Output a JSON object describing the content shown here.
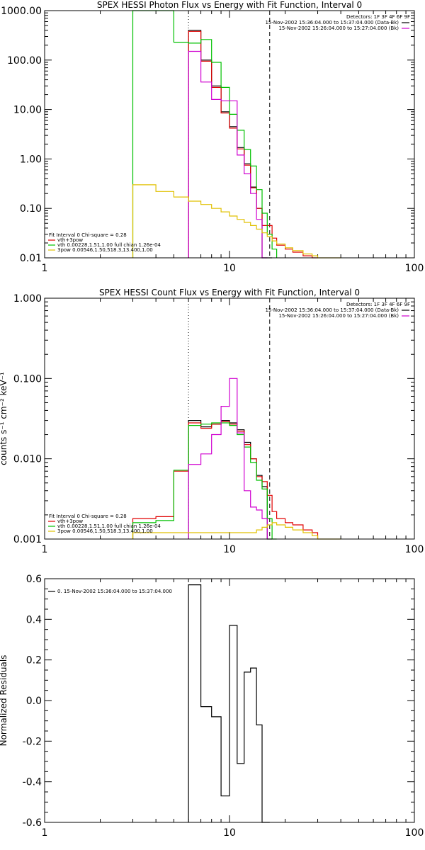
{
  "chart_data": [
    {
      "type": "line",
      "title": "SPEX HESSI Photon Flux vs Energy with Fit Function, Interval 0",
      "xscale": "log",
      "yscale": "log",
      "xlim": [
        1,
        100
      ],
      "ylim": [
        0.01,
        1000
      ],
      "xticks": [
        {
          "v": 1,
          "label": "1"
        },
        {
          "v": 10,
          "label": "10"
        },
        {
          "v": 100,
          "label": "100"
        }
      ],
      "yticks": [
        {
          "v": 0.01,
          "label": "0.01"
        },
        {
          "v": 0.1,
          "label": "0.10"
        },
        {
          "v": 1,
          "label": "1.00"
        },
        {
          "v": 10,
          "label": "10.00"
        },
        {
          "v": 100,
          "label": "100.00"
        },
        {
          "v": 1000,
          "label": "1000.00"
        }
      ],
      "vlines": [
        {
          "x": 6.0,
          "style": "dotted"
        },
        {
          "x": 16.5,
          "style": "dashed"
        }
      ],
      "header": [
        {
          "text": "Detectors: 1F 3F 4F 6F 9F",
          "color": null
        },
        {
          "text": "15-Nov-2002 15:36:04.000 to 15:37:04.000 (Data-Bk)",
          "color": "#000000"
        },
        {
          "text": "15-Nov-2002 15:26:04.000 to 15:27:04.000 (Bk)",
          "color": "#d000d0"
        }
      ],
      "legend": [
        {
          "text": "Fit Interval 0   Chi-square = 0.28",
          "color": null
        },
        {
          "text": "vth+3pow",
          "color": "#e00000"
        },
        {
          "text": "vth 0.00228,1.51,1.00  full chian 1.26e-04",
          "color": "#00c000"
        },
        {
          "text": "3pow 0.00546,1.50,518.3,13.400,1.00",
          "color": "#e0c000"
        }
      ],
      "series": [
        {
          "color": "#000000",
          "bins": [
            6,
            7,
            8,
            9,
            10,
            11,
            12,
            13,
            14,
            15,
            16,
            17
          ],
          "values": [
            400,
            100,
            30,
            9,
            4.5,
            1.7,
            0.8,
            0.27,
            0.1,
            0.01,
            0.01
          ]
        },
        {
          "color": "#e00000",
          "bins": [
            6,
            7,
            8,
            9,
            10,
            11,
            12,
            13,
            14,
            15,
            16,
            17,
            18,
            20,
            22,
            25,
            28,
            30
          ],
          "values": [
            380,
            95,
            28,
            8.5,
            4.2,
            1.6,
            0.75,
            0.26,
            0.1,
            0.045,
            0.045,
            0.025,
            0.018,
            0.015,
            0.013,
            0.011,
            0.01
          ]
        },
        {
          "color": "#00c000",
          "bins": [
            3,
            4,
            5,
            6,
            7,
            8,
            9,
            10,
            11,
            12,
            13,
            14,
            15,
            16,
            17,
            18
          ],
          "values": [
            1000,
            1000,
            230,
            220,
            260,
            90,
            28,
            8,
            3.8,
            1.55,
            0.72,
            0.24,
            0.08,
            0.03,
            0.015
          ]
        },
        {
          "color": "#d000d0",
          "bins": [
            6,
            7,
            8,
            9,
            10,
            11,
            12,
            13,
            14,
            15,
            16
          ],
          "values": [
            150,
            36,
            16,
            15,
            15,
            1.2,
            0.5,
            0.2,
            0.06,
            0.01
          ]
        },
        {
          "color": "#e0c000",
          "bins": [
            3,
            4,
            5,
            6,
            7,
            8,
            9,
            10,
            11,
            12,
            13,
            14,
            15,
            16,
            17,
            18,
            20,
            22,
            25,
            28,
            30,
            35,
            40
          ],
          "values": [
            0.3,
            0.22,
            0.17,
            0.14,
            0.12,
            0.1,
            0.085,
            0.07,
            0.06,
            0.052,
            0.045,
            0.038,
            0.032,
            0.027,
            0.022,
            0.019,
            0.016,
            0.014,
            0.012,
            0.011,
            0.01,
            0.01
          ]
        }
      ]
    },
    {
      "type": "line",
      "title": "SPEX HESSI Count Flux vs Energy with Fit Function, Interval 0",
      "ylabel": "counts s⁻¹ cm⁻² keV⁻¹",
      "xscale": "log",
      "yscale": "log",
      "xlim": [
        1,
        100
      ],
      "ylim": [
        0.001,
        1
      ],
      "xticks": [
        {
          "v": 1,
          "label": "1"
        },
        {
          "v": 10,
          "label": "10"
        },
        {
          "v": 100,
          "label": "100"
        }
      ],
      "yticks": [
        {
          "v": 0.001,
          "label": "0.001"
        },
        {
          "v": 0.01,
          "label": "0.010"
        },
        {
          "v": 0.1,
          "label": "0.100"
        },
        {
          "v": 1,
          "label": "1.000"
        }
      ],
      "vlines": [
        {
          "x": 6.0,
          "style": "dotted"
        },
        {
          "x": 16.5,
          "style": "dashed"
        }
      ],
      "header": [
        {
          "text": "Detectors: 1F 3F 4F 6F 9F",
          "color": null
        },
        {
          "text": "15-Nov-2002 15:36:04.000 to 15:37:04.000 (Data-Bk)",
          "color": "#000000"
        },
        {
          "text": "15-Nov-2002 15:26:04.000 to 15:27:04.000 (Bk)",
          "color": "#d000d0"
        }
      ],
      "legend": [
        {
          "text": "Fit Interval 0   Chi-square = 0.28",
          "color": null
        },
        {
          "text": "vth+3pow",
          "color": "#e00000"
        },
        {
          "text": "vth 0.00228,1.51,1.00  full chian 1.26e-04",
          "color": "#00c000"
        },
        {
          "text": "3pow 0.00546,1.50,518.3,13.400,1.00",
          "color": "#e0c000"
        }
      ],
      "series": [
        {
          "color": "#000000",
          "bins": [
            6,
            7,
            8,
            9,
            10,
            11,
            12,
            13,
            14,
            15,
            16,
            17
          ],
          "values": [
            0.03,
            0.025,
            0.027,
            0.03,
            0.028,
            0.023,
            0.016,
            0.01,
            0.0062,
            0.0045,
            0.001
          ]
        },
        {
          "color": "#e00000",
          "bins": [
            3,
            4,
            5,
            6,
            7,
            8,
            9,
            10,
            11,
            12,
            13,
            14,
            15,
            16,
            17,
            18,
            20,
            22,
            25,
            28,
            30
          ],
          "values": [
            0.0018,
            0.0019,
            0.007,
            0.028,
            0.024,
            0.027,
            0.029,
            0.027,
            0.022,
            0.015,
            0.01,
            0.006,
            0.0052,
            0.0035,
            0.0022,
            0.0018,
            0.0016,
            0.0015,
            0.0013,
            0.0012
          ]
        },
        {
          "color": "#00c000",
          "bins": [
            3,
            4,
            5,
            6,
            7,
            8,
            9,
            10,
            11,
            12,
            13,
            14,
            15,
            16,
            17,
            18
          ],
          "values": [
            0.0016,
            0.0017,
            0.0072,
            0.026,
            0.027,
            0.028,
            0.028,
            0.026,
            0.02,
            0.014,
            0.009,
            0.0054,
            0.0042,
            0.0018,
            0.001
          ]
        },
        {
          "color": "#d000d0",
          "bins": [
            6,
            7,
            8,
            9,
            10,
            11,
            12,
            13,
            14,
            15,
            16
          ],
          "values": [
            0.0085,
            0.0115,
            0.02,
            0.045,
            0.1,
            0.021,
            0.004,
            0.0025,
            0.0023,
            0.0018
          ]
        },
        {
          "color": "#e0c000",
          "bins": [
            3,
            4,
            5,
            6,
            7,
            8,
            9,
            10,
            11,
            12,
            13,
            14,
            15,
            16,
            17,
            18,
            20,
            22,
            25,
            28,
            30,
            35,
            40
          ],
          "values": [
            0.0012,
            0.0012,
            0.0012,
            0.0012,
            0.0012,
            0.0012,
            0.0012,
            0.0012,
            0.0012,
            0.0012,
            0.0012,
            0.0013,
            0.0014,
            0.0015,
            0.0016,
            0.0015,
            0.0014,
            0.0013,
            0.0012,
            0.0011,
            0.001,
            0.001
          ]
        }
      ]
    },
    {
      "type": "line",
      "ylabel": "Normalized Residuals",
      "xscale": "log",
      "yscale": "linear",
      "xlim": [
        1,
        100
      ],
      "ylim": [
        -0.6,
        0.6
      ],
      "xticks": [
        {
          "v": 1,
          "label": "1"
        },
        {
          "v": 10,
          "label": "10"
        },
        {
          "v": 100,
          "label": "100"
        }
      ],
      "yticks": [
        {
          "v": -0.6,
          "label": "-0.6"
        },
        {
          "v": -0.4,
          "label": "-0.4"
        },
        {
          "v": -0.2,
          "label": "-0.2"
        },
        {
          "v": 0.0,
          "label": "0.0"
        },
        {
          "v": 0.2,
          "label": "0.2"
        },
        {
          "v": 0.4,
          "label": "0.4"
        },
        {
          "v": 0.6,
          "label": "0.6"
        }
      ],
      "legend": [
        {
          "text": "0. 15-Nov-2002 15:36:04.000 to 15:37:04.000",
          "color": "#000000"
        }
      ],
      "series": [
        {
          "color": "#000000",
          "bins": [
            6,
            7,
            8,
            9,
            10,
            11,
            12,
            13,
            14,
            15,
            16.5
          ],
          "values": [
            0.57,
            -0.03,
            -0.08,
            -0.47,
            0.37,
            -0.31,
            0.14,
            0.16,
            -0.12,
            -0.6
          ]
        }
      ]
    }
  ]
}
